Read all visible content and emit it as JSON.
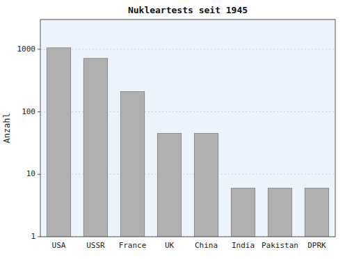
{
  "chart_data": {
    "type": "bar",
    "title": "Nukleartests seit 1945",
    "ylabel": "Anzahl",
    "categories": [
      "USA",
      "USSR",
      "France",
      "UK",
      "China",
      "India",
      "Pakistan",
      "DPRK"
    ],
    "values": [
      1054,
      715,
      210,
      45,
      45,
      6,
      6,
      6
    ],
    "color": "#b0b0b0",
    "log": "y",
    "ylim": [
      1,
      3000
    ],
    "yticks": [
      1,
      10,
      100,
      1000
    ],
    "grid": true
  }
}
